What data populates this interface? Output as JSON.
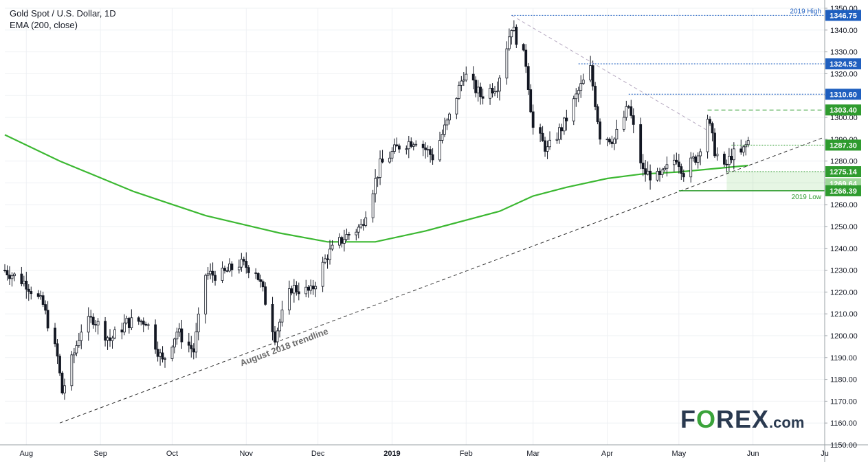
{
  "header": {
    "title": "Gold Spot / U.S. Dollar, 1D",
    "subtitle": "EMA (200, close)"
  },
  "logo": {
    "text_pre": "F",
    "text_o": "O",
    "text_post": "REX",
    "domain": ".com"
  },
  "colors": {
    "up": "#26a69a",
    "down": "#131722",
    "ema": "#3cb832",
    "blue_level": "#1f5fbf",
    "green_level": "#2e9b2e",
    "grid": "#eef0f3",
    "trendline": "#333333",
    "downtrend": "#b5a8c0"
  },
  "chart_data": {
    "type": "candlestick",
    "title": "Gold Spot / U.S. Dollar, 1D",
    "ylim": [
      1150,
      1350
    ],
    "yticks": [
      1150,
      1160,
      1170,
      1180,
      1190,
      1200,
      1210,
      1220,
      1230,
      1240,
      1250,
      1260,
      1270,
      1280,
      1290,
      1300,
      1310,
      1320,
      1330,
      1340,
      1350
    ],
    "ytick_labels": [
      "1150.00",
      "1160.00",
      "1170.00",
      "1180.00",
      "1190.00",
      "1200.00",
      "1210.00",
      "1220.00",
      "1230.00",
      "1240.00",
      "1250.00",
      "1260.00",
      "1270.00",
      "1280.00",
      "1290.00",
      "1300.00",
      "1310.00",
      "1320.00",
      "1330.00",
      "1340.00",
      "1350.00"
    ],
    "x_start": "2018-07-23",
    "x_end": "2019-07-01",
    "xticks": [
      {
        "date": "2018-08-01",
        "label": "Aug",
        "bold": false
      },
      {
        "date": "2018-09-01",
        "label": "Sep",
        "bold": false
      },
      {
        "date": "2018-10-01",
        "label": "Oct",
        "bold": false
      },
      {
        "date": "2018-11-01",
        "label": "Nov",
        "bold": false
      },
      {
        "date": "2018-12-01",
        "label": "Dec",
        "bold": false
      },
      {
        "date": "2019-01-01",
        "label": "2019",
        "bold": true
      },
      {
        "date": "2019-02-01",
        "label": "Feb",
        "bold": false
      },
      {
        "date": "2019-03-01",
        "label": "Mar",
        "bold": false
      },
      {
        "date": "2019-04-01",
        "label": "Apr",
        "bold": false
      },
      {
        "date": "2019-05-01",
        "label": "May",
        "bold": false
      },
      {
        "date": "2019-06-01",
        "label": "Jun",
        "bold": false
      },
      {
        "date": "2019-07-01",
        "label": "Ju",
        "bold": false
      }
    ],
    "price_anchors": [
      [
        "2018-07-23",
        1230
      ],
      [
        "2018-08-01",
        1224
      ],
      [
        "2018-08-08",
        1214
      ],
      [
        "2018-08-14",
        1190
      ],
      [
        "2018-08-16",
        1174
      ],
      [
        "2018-08-24",
        1203
      ],
      [
        "2018-08-29",
        1208
      ],
      [
        "2018-09-05",
        1198
      ],
      [
        "2018-09-12",
        1206
      ],
      [
        "2018-09-20",
        1207
      ],
      [
        "2018-09-27",
        1188
      ],
      [
        "2018-10-03",
        1202
      ],
      [
        "2018-10-10",
        1193
      ],
      [
        "2018-10-15",
        1228
      ],
      [
        "2018-10-22",
        1228
      ],
      [
        "2018-10-29",
        1233
      ],
      [
        "2018-11-05",
        1230
      ],
      [
        "2018-11-08",
        1220
      ],
      [
        "2018-11-13",
        1200
      ],
      [
        "2018-11-20",
        1222
      ],
      [
        "2018-11-28",
        1220
      ],
      [
        "2018-12-05",
        1237
      ],
      [
        "2018-12-12",
        1245
      ],
      [
        "2018-12-19",
        1250
      ],
      [
        "2018-12-27",
        1278
      ],
      [
        "2019-01-04",
        1287
      ],
      [
        "2019-01-11",
        1290
      ],
      [
        "2019-01-18",
        1282
      ],
      [
        "2019-01-25",
        1300
      ],
      [
        "2019-01-31",
        1320
      ],
      [
        "2019-02-07",
        1310
      ],
      [
        "2019-02-14",
        1315
      ],
      [
        "2019-02-20",
        1342
      ],
      [
        "2019-02-26",
        1325
      ],
      [
        "2019-03-01",
        1295
      ],
      [
        "2019-03-07",
        1285
      ],
      [
        "2019-03-14",
        1297
      ],
      [
        "2019-03-20",
        1312
      ],
      [
        "2019-03-25",
        1322
      ],
      [
        "2019-03-29",
        1292
      ],
      [
        "2019-04-04",
        1290
      ],
      [
        "2019-04-10",
        1305
      ],
      [
        "2019-04-16",
        1275
      ],
      [
        "2019-04-23",
        1272
      ],
      [
        "2019-04-30",
        1282
      ],
      [
        "2019-05-03",
        1275
      ],
      [
        "2019-05-09",
        1283
      ],
      [
        "2019-05-13",
        1300
      ],
      [
        "2019-05-16",
        1285
      ],
      [
        "2019-05-20",
        1276
      ],
      [
        "2019-05-23",
        1283
      ],
      [
        "2019-05-27",
        1283
      ],
      [
        "2019-05-30",
        1289
      ]
    ],
    "ema_200": [
      [
        "2018-07-23",
        1292
      ],
      [
        "2018-08-15",
        1280
      ],
      [
        "2018-09-15",
        1266
      ],
      [
        "2018-10-15",
        1255
      ],
      [
        "2018-11-15",
        1247
      ],
      [
        "2018-12-05",
        1243
      ],
      [
        "2018-12-25",
        1243
      ],
      [
        "2019-01-15",
        1248
      ],
      [
        "2019-02-15",
        1257
      ],
      [
        "2019-03-01",
        1264
      ],
      [
        "2019-03-15",
        1268
      ],
      [
        "2019-04-01",
        1272
      ],
      [
        "2019-04-15",
        1274
      ],
      [
        "2019-05-01",
        1275
      ],
      [
        "2019-05-30",
        1278
      ]
    ],
    "levels": [
      {
        "value": 1346.75,
        "label": "1346.75",
        "color": "blue",
        "style": "dotted",
        "from": "2019-02-20",
        "annotation": "2019 High"
      },
      {
        "value": 1324.52,
        "label": "1324.52",
        "color": "blue",
        "style": "dotted",
        "from": "2019-03-20",
        "annotation": ""
      },
      {
        "value": 1310.6,
        "label": "1310.60",
        "color": "blue",
        "style": "dotted",
        "from": "2019-04-10",
        "annotation": ""
      },
      {
        "value": 1303.4,
        "label": "1303.40",
        "color": "green",
        "style": "dashed",
        "from": "2019-05-13",
        "annotation": ""
      },
      {
        "value": 1287.3,
        "label": "1287.30",
        "color": "green",
        "style": "dotted",
        "from": "2019-05-23",
        "annotation": ""
      },
      {
        "value": 1275.14,
        "label": "1275.14",
        "color": "green",
        "style": "dotted",
        "from": "2019-05-21",
        "annotation": ""
      },
      {
        "value": 1269.64,
        "label": "1269.64",
        "color": "green",
        "style": "zone",
        "from": "2019-05-21",
        "annotation": ""
      },
      {
        "value": 1266.39,
        "label": "1266.39",
        "color": "green",
        "style": "solid",
        "from": "2019-05-01",
        "annotation": "2019 Low"
      }
    ],
    "trendline": {
      "from": [
        "2018-08-15",
        1160
      ],
      "to": [
        "2019-07-01",
        1291
      ],
      "label": "August 2018 trendline"
    },
    "downtrend": {
      "from": [
        "2019-02-20",
        1346.75
      ],
      "to": [
        "2019-05-13",
        1294
      ]
    }
  }
}
